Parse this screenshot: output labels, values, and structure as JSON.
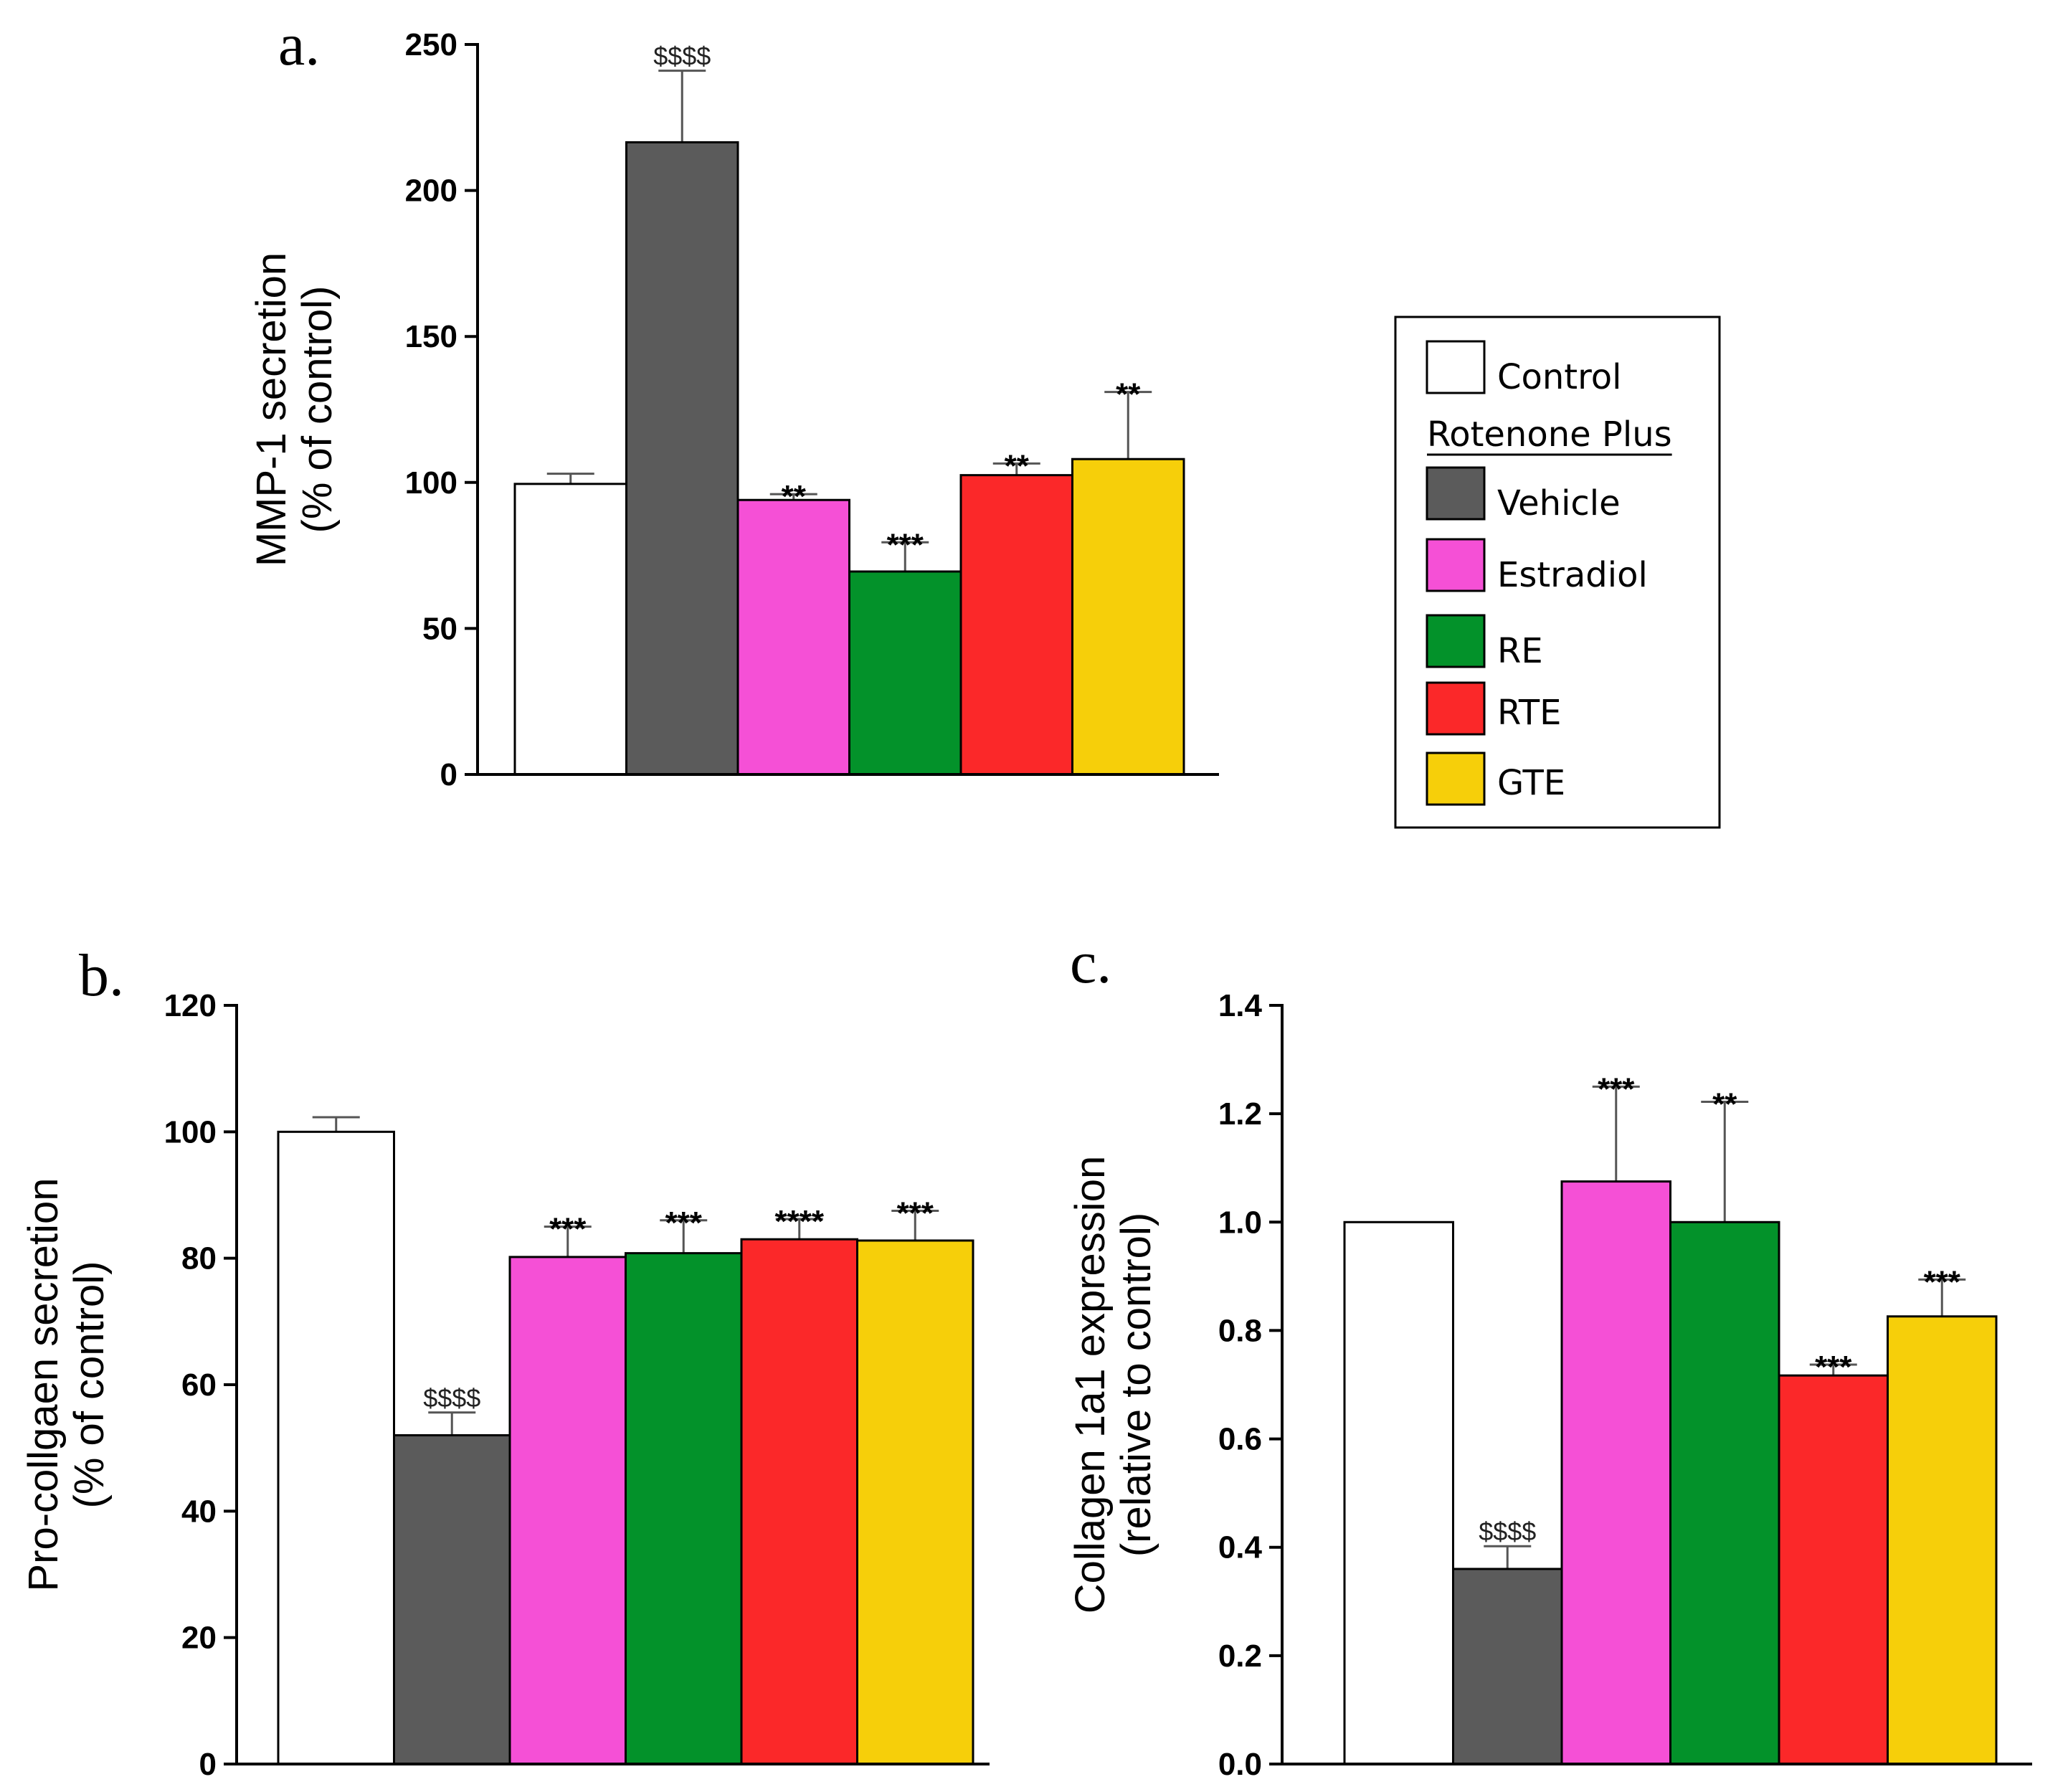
{
  "colors": {
    "Control": "#ffffff",
    "Vehicle": "#5b5b5b",
    "Estradiol": "#f550d6",
    "RE": "#03922a",
    "RTE": "#fb2829",
    "GTE": "#f6cf0a"
  },
  "legend": {
    "first": "Control",
    "heading": "Rotenone Plus",
    "items": [
      "Vehicle",
      "Estradiol",
      "RE",
      "RTE",
      "GTE"
    ]
  },
  "chart_data": [
    {
      "type": "bar",
      "panel": "a.",
      "title": "",
      "xlabel": "",
      "ylabel": [
        "MMP-1 secretion",
        "(% of control)"
      ],
      "ylim": [
        0,
        250
      ],
      "yticks": [
        0,
        50,
        100,
        150,
        200,
        250
      ],
      "tick_decimals": 0,
      "categories": [
        "Control",
        "Vehicle",
        "Estradiol",
        "RE",
        "RTE",
        "GTE"
      ],
      "values": [
        99.5,
        216.5,
        94,
        69.5,
        102.5,
        108
      ],
      "errors": [
        3.5,
        24.5,
        2,
        10,
        4,
        23
      ],
      "annotations": [
        "",
        "$$$$",
        "**",
        "***",
        "**",
        "**"
      ]
    },
    {
      "type": "bar",
      "panel": "b.",
      "title": "",
      "xlabel": "",
      "ylabel": [
        "Pro-collgaen secretion",
        "(% of control)"
      ],
      "ylim": [
        0,
        120
      ],
      "yticks": [
        0,
        20,
        40,
        60,
        80,
        100,
        120
      ],
      "tick_decimals": 0,
      "categories": [
        "Control",
        "Vehicle",
        "Estradiol",
        "RE",
        "RTE",
        "GTE"
      ],
      "values": [
        100,
        52,
        80.2,
        80.8,
        83,
        82.8
      ],
      "errors": [
        2.3,
        3.6,
        4.8,
        5.2,
        3.2,
        4.7
      ],
      "annotations": [
        "",
        "$$$$",
        "***",
        "***",
        "****",
        "***"
      ]
    },
    {
      "type": "bar",
      "panel": "c.",
      "title": "",
      "xlabel": "",
      "ylabel": [
        "Collagen 1a1 expression",
        "(relative to control)"
      ],
      "ylim": [
        0,
        1.4
      ],
      "yticks": [
        0.0,
        0.2,
        0.4,
        0.6,
        0.8,
        1.0,
        1.2,
        1.4
      ],
      "tick_decimals": 1,
      "categories": [
        "Control",
        "Vehicle",
        "Estradiol",
        "RE",
        "RTE",
        "GTE"
      ],
      "values": [
        1.0,
        0.36,
        1.075,
        1.0,
        0.717,
        0.826
      ],
      "errors": [
        0,
        0.042,
        0.175,
        0.222,
        0.02,
        0.068
      ],
      "annotations": [
        "",
        "$$$$",
        "***",
        "**",
        "***",
        "***"
      ]
    }
  ]
}
